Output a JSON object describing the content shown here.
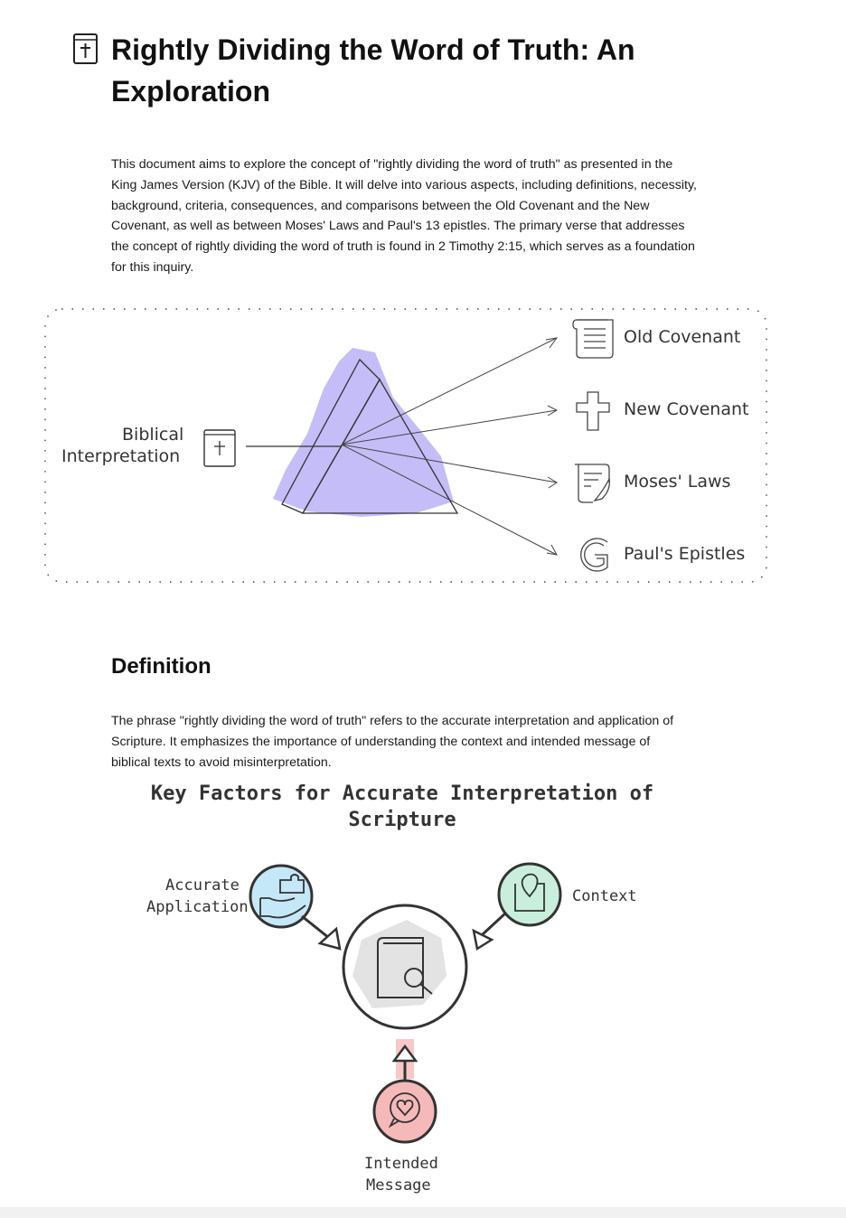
{
  "document": {
    "title": "Rightly Dividing the Word of Truth: An Exploration",
    "intro": "This document aims to explore the concept of \"rightly dividing the word of truth\" as presented in the King James Version (KJV) of the Bible. It will delve into various aspects, including definitions, necessity, background, criteria, consequences, and comparisons between the Old Covenant and the New Covenant, as well as between Moses' Laws and Paul's 13 epistles. The primary verse that addresses the concept of rightly dividing the word of truth is found in 2 Timothy 2:15, which serves as a foundation for this inquiry."
  },
  "prism_diagram": {
    "source_label_line1": "Biblical",
    "source_label_line2": "Interpretation",
    "outputs": [
      {
        "label": "Old Covenant",
        "icon": "scroll-icon"
      },
      {
        "label": "New Covenant",
        "icon": "cross-icon"
      },
      {
        "label": "Moses' Laws",
        "icon": "law-scroll-icon"
      },
      {
        "label": "Paul's Epistles",
        "icon": "letter-g-icon"
      }
    ],
    "prism_color": "#c5bdf7"
  },
  "definition": {
    "heading": "Definition",
    "text": "The phrase \"rightly dividing the word of truth\" refers to the accurate interpretation and application of Scripture. It emphasizes the importance of understanding the context and intended message of biblical texts to avoid misinterpretation."
  },
  "key_factors": {
    "title": "Key Factors for Accurate Interpretation of Scripture",
    "center_icon": "book-search-icon",
    "factors": [
      {
        "line1": "Accurate",
        "line2": "Application",
        "icon": "hand-puzzle-icon",
        "color": "#bfe6f7"
      },
      {
        "line1": "Context",
        "line2": "",
        "icon": "map-pin-icon",
        "color": "#c9efdc"
      },
      {
        "line1": "Intended",
        "line2": "Message",
        "icon": "heart-bubble-icon",
        "color": "#f6b9b9"
      }
    ]
  }
}
